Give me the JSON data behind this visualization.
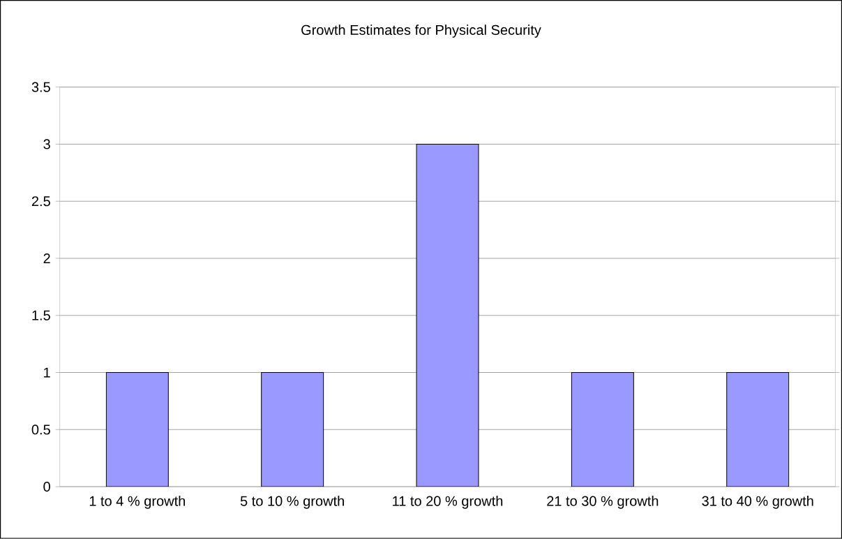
{
  "chart_data": {
    "type": "bar",
    "title": "Growth Estimates for Physical Security",
    "categories": [
      "1 to 4 % growth",
      "5 to 10 % growth",
      "11 to 20 % growth",
      "21 to 30 % growth",
      "31 to 40 % growth"
    ],
    "values": [
      1,
      1,
      3,
      1,
      1
    ],
    "color": "#9999ff",
    "ylim": [
      0,
      3.5
    ],
    "yticks": [
      0,
      0.5,
      1,
      1.5,
      2,
      2.5,
      3,
      3.5
    ],
    "grid": "y"
  }
}
